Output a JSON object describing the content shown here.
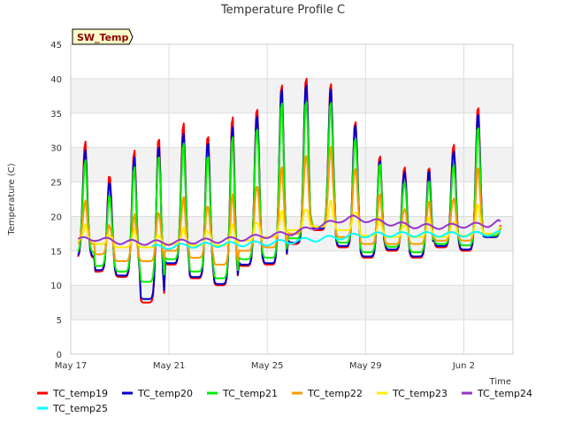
{
  "chart_data": {
    "type": "line",
    "title": "Temperature Profile C",
    "xlabel": "Time",
    "ylabel": "Temperature (C)",
    "tag": "SW_Temp",
    "ylim": [
      0,
      45
    ],
    "yticks": [
      0,
      5,
      10,
      15,
      20,
      25,
      30,
      35,
      40,
      45
    ],
    "xlim": [
      0,
      18
    ],
    "xticks": [
      {
        "x": 0,
        "label": "May 17"
      },
      {
        "x": 4,
        "label": "May 21"
      },
      {
        "x": 8,
        "label": "May 25"
      },
      {
        "x": 12,
        "label": "May 29"
      },
      {
        "x": 16,
        "label": "Jun 2"
      }
    ],
    "grid": true,
    "legend_position": "bottom",
    "days": [
      0.3,
      1,
      2,
      3,
      4,
      5,
      6,
      7,
      8,
      9,
      10,
      11,
      12,
      13,
      14,
      15,
      16,
      17
    ],
    "series": [
      {
        "name": "TC_temp19",
        "color": "#ff0000",
        "type": "diurnal",
        "peaks": [
          30.8,
          26.5,
          29.5,
          32.2,
          33.5,
          32.5,
          34.5,
          36.5,
          39.2,
          41,
          39.3,
          34.5,
          28.7,
          27.7,
          27.0,
          31.0,
          36.0,
          19.5
        ],
        "troughs": [
          14.0,
          12.0,
          11.2,
          7.5,
          13.0,
          11.0,
          10.0,
          12.8,
          13.0,
          16.0,
          18.0,
          15.5,
          14.0,
          15.0,
          14.0,
          15.5,
          15.0,
          17.0
        ]
      },
      {
        "name": "TC_temp20",
        "color": "#0000cc",
        "type": "diurnal",
        "peaks": [
          29.5,
          25.5,
          28.5,
          31.0,
          32.0,
          31.5,
          33.0,
          35.5,
          38.5,
          40.0,
          38.5,
          34.0,
          28.0,
          27.0,
          26.5,
          30.0,
          35.0,
          19.0
        ],
        "troughs": [
          14.2,
          12.2,
          11.4,
          8.0,
          13.2,
          11.2,
          10.2,
          13.0,
          13.2,
          16.2,
          18.2,
          15.7,
          14.2,
          15.2,
          14.2,
          15.7,
          15.2,
          17.0
        ]
      },
      {
        "name": "TC_temp21",
        "color": "#00ee00",
        "type": "diurnal",
        "peaks": [
          28.0,
          23.5,
          27.0,
          29.5,
          30.5,
          29.5,
          31.5,
          33.5,
          36.5,
          37.5,
          36.5,
          32.0,
          27.5,
          25.5,
          25.0,
          28.0,
          33.0,
          19.0
        ],
        "troughs": [
          14.8,
          12.8,
          12.0,
          10.5,
          13.8,
          12.0,
          11.0,
          13.8,
          14.0,
          16.8,
          18.5,
          16.2,
          14.8,
          15.6,
          14.8,
          16.0,
          15.8,
          17.2
        ]
      },
      {
        "name": "TC_temp22",
        "color": "#ff9900",
        "type": "diurnal",
        "peaks": [
          22.0,
          19.0,
          20.0,
          21.0,
          22.5,
          22.0,
          23.0,
          25.0,
          27.0,
          29.5,
          30.0,
          27.5,
          23.0,
          21.5,
          22.0,
          23.0,
          27.0,
          19.0
        ],
        "troughs": [
          16.0,
          14.5,
          13.5,
          13.5,
          15.0,
          14.0,
          13.0,
          15.0,
          15.5,
          17.5,
          18.5,
          17.0,
          16.0,
          16.0,
          16.0,
          16.5,
          16.5,
          17.5
        ]
      },
      {
        "name": "TC_temp23",
        "color": "#ffee00",
        "type": "diurnal",
        "peaks": [
          18.5,
          17.5,
          17.8,
          17.5,
          18.0,
          18.2,
          18.5,
          19.5,
          20.5,
          21.5,
          22.0,
          21.0,
          19.5,
          19.0,
          19.5,
          19.5,
          21.5,
          19.0
        ],
        "troughs": [
          16.5,
          16.0,
          15.5,
          15.5,
          16.0,
          15.8,
          15.8,
          16.5,
          17.0,
          18.0,
          18.5,
          18.0,
          17.2,
          17.0,
          17.0,
          17.0,
          17.2,
          17.5
        ]
      },
      {
        "name": "TC_temp24",
        "color": "#9933cc",
        "type": "smooth",
        "x": [
          0.3,
          1,
          2,
          3,
          4,
          5,
          6,
          7,
          8,
          9,
          10,
          10.5,
          11,
          11.5,
          12,
          13,
          14,
          15,
          16,
          17,
          17.5
        ],
        "y": [
          16.6,
          16.8,
          16.3,
          16.2,
          16.2,
          16.4,
          16.5,
          16.8,
          17.2,
          17.6,
          18.5,
          19.0,
          19.5,
          19.8,
          19.5,
          19.0,
          18.6,
          18.5,
          18.7,
          18.8,
          19.3
        ]
      },
      {
        "name": "TC_temp25",
        "color": "#00ffff",
        "type": "smooth",
        "x": [
          3.3,
          4,
          5,
          6,
          7,
          8,
          9,
          10,
          11,
          12,
          13,
          14,
          15,
          16,
          17,
          17.5
        ],
        "y": [
          15.5,
          15.6,
          15.8,
          15.9,
          16.0,
          16.1,
          16.4,
          16.7,
          17.0,
          17.3,
          17.4,
          17.4,
          17.4,
          17.4,
          17.5,
          17.6
        ]
      }
    ]
  }
}
